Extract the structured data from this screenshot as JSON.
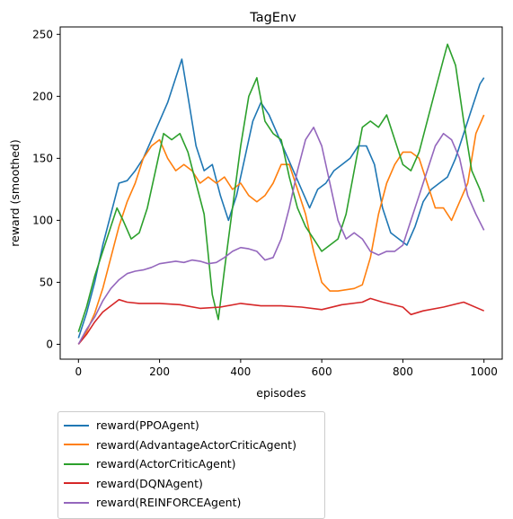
{
  "chart_data": {
    "type": "line",
    "title": "TagEnv",
    "xlabel": "episodes",
    "ylabel": "reward (smoothed)",
    "xlim": [
      -45,
      1045
    ],
    "ylim": [
      -12,
      256
    ],
    "xticks": [
      0,
      200,
      400,
      600,
      800,
      1000
    ],
    "yticks": [
      0,
      50,
      100,
      150,
      200,
      250
    ],
    "grid": false,
    "legend_position": "below-left, outside plot",
    "series": [
      {
        "name": "reward(PPOAgent)",
        "color": "#1f77b4",
        "x": [
          0,
          20,
          40,
          60,
          80,
          100,
          120,
          140,
          160,
          180,
          200,
          220,
          240,
          255,
          270,
          290,
          310,
          330,
          350,
          370,
          390,
          410,
          430,
          450,
          470,
          490,
          510,
          530,
          550,
          570,
          590,
          610,
          630,
          650,
          670,
          690,
          710,
          730,
          750,
          770,
          790,
          810,
          830,
          850,
          870,
          890,
          910,
          930,
          950,
          970,
          990,
          1000
        ],
        "y": [
          5,
          25,
          50,
          80,
          105,
          130,
          132,
          140,
          150,
          165,
          180,
          195,
          215,
          230,
          200,
          160,
          140,
          145,
          120,
          100,
          120,
          150,
          180,
          195,
          185,
          170,
          155,
          140,
          125,
          110,
          125,
          130,
          140,
          145,
          150,
          160,
          160,
          145,
          110,
          90,
          85,
          80,
          95,
          115,
          125,
          130,
          135,
          150,
          170,
          190,
          210,
          215
        ]
      },
      {
        "name": "reward(AdvantageActorCriticAgent)",
        "color": "#ff7f0e",
        "x": [
          0,
          20,
          40,
          60,
          80,
          100,
          120,
          140,
          160,
          180,
          200,
          220,
          240,
          260,
          280,
          300,
          320,
          340,
          360,
          380,
          400,
          420,
          440,
          460,
          480,
          500,
          520,
          540,
          560,
          580,
          600,
          620,
          640,
          660,
          680,
          700,
          720,
          740,
          760,
          780,
          800,
          820,
          840,
          860,
          880,
          900,
          920,
          940,
          960,
          980,
          1000
        ],
        "y": [
          0,
          10,
          25,
          45,
          70,
          95,
          115,
          130,
          150,
          160,
          165,
          150,
          140,
          145,
          140,
          130,
          135,
          130,
          135,
          125,
          130,
          120,
          115,
          120,
          130,
          145,
          145,
          125,
          105,
          75,
          50,
          43,
          43,
          44,
          45,
          48,
          70,
          105,
          130,
          145,
          155,
          155,
          150,
          130,
          110,
          110,
          100,
          115,
          130,
          170,
          185
        ]
      },
      {
        "name": "reward(ActorCriticAgent)",
        "color": "#2ca02c",
        "x": [
          0,
          20,
          40,
          60,
          80,
          95,
          110,
          130,
          150,
          170,
          190,
          210,
          230,
          250,
          270,
          290,
          310,
          330,
          345,
          360,
          380,
          400,
          420,
          440,
          460,
          480,
          500,
          520,
          540,
          560,
          580,
          600,
          620,
          640,
          660,
          680,
          700,
          720,
          740,
          760,
          780,
          800,
          820,
          840,
          860,
          880,
          900,
          910,
          930,
          950,
          970,
          990,
          1000
        ],
        "y": [
          10,
          30,
          55,
          75,
          95,
          110,
          100,
          85,
          90,
          110,
          140,
          170,
          165,
          170,
          155,
          130,
          105,
          40,
          20,
          60,
          110,
          160,
          200,
          215,
          180,
          170,
          165,
          135,
          110,
          95,
          85,
          75,
          80,
          85,
          105,
          140,
          175,
          180,
          175,
          185,
          165,
          145,
          140,
          155,
          180,
          205,
          230,
          242,
          225,
          180,
          140,
          125,
          115
        ]
      },
      {
        "name": "reward(DQNAgent)",
        "color": "#d62728",
        "x": [
          0,
          20,
          40,
          60,
          80,
          100,
          120,
          150,
          200,
          250,
          300,
          350,
          400,
          450,
          500,
          550,
          600,
          650,
          700,
          720,
          750,
          800,
          820,
          850,
          900,
          950,
          1000
        ],
        "y": [
          0,
          8,
          18,
          26,
          31,
          36,
          34,
          33,
          33,
          32,
          29,
          30,
          33,
          31,
          31,
          30,
          28,
          32,
          34,
          37,
          34,
          30,
          24,
          27,
          30,
          34,
          27
        ]
      },
      {
        "name": "reward(REINFORCEAgent)",
        "color": "#9467bd",
        "x": [
          0,
          20,
          40,
          60,
          80,
          100,
          120,
          140,
          160,
          180,
          200,
          220,
          240,
          260,
          280,
          300,
          320,
          340,
          360,
          380,
          400,
          420,
          440,
          460,
          480,
          500,
          520,
          540,
          560,
          580,
          600,
          620,
          640,
          660,
          680,
          700,
          720,
          740,
          760,
          780,
          800,
          820,
          840,
          860,
          880,
          900,
          920,
          940,
          960,
          980,
          1000
        ],
        "y": [
          0,
          12,
          22,
          35,
          45,
          52,
          57,
          59,
          60,
          62,
          65,
          66,
          67,
          66,
          68,
          67,
          65,
          66,
          70,
          75,
          78,
          77,
          75,
          68,
          70,
          85,
          110,
          140,
          165,
          175,
          160,
          130,
          100,
          85,
          90,
          85,
          75,
          72,
          75,
          75,
          80,
          100,
          120,
          140,
          160,
          170,
          165,
          150,
          120,
          105,
          92
        ]
      }
    ]
  }
}
